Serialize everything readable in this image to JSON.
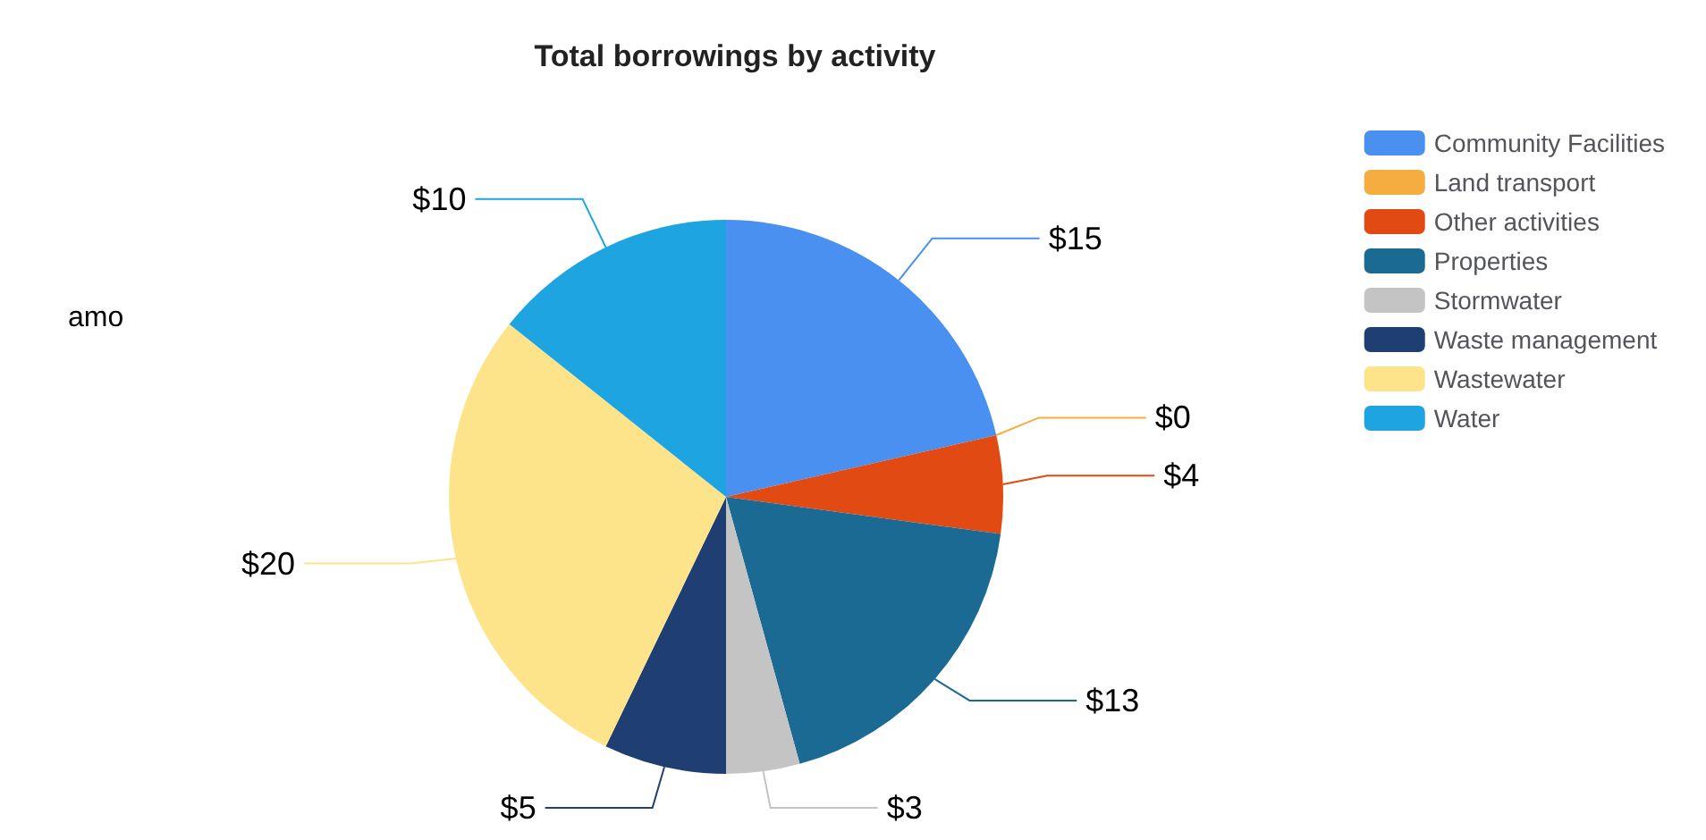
{
  "chart_data": {
    "type": "pie",
    "title": "Total borrowings by activity",
    "categories": [
      "Community Facilities",
      "Land transport",
      "Other activities",
      "Properties",
      "Stormwater",
      "Waste management",
      "Wastewater",
      "Water"
    ],
    "values": [
      15,
      0,
      4,
      13,
      3,
      5,
      20,
      10
    ],
    "value_labels": [
      "$15",
      "$0",
      "$4",
      "$13",
      "$3",
      "$5",
      "$20",
      "$10"
    ],
    "colors": [
      "#4a90f0",
      "#f5ad3f",
      "#e24a14",
      "#1a6a94",
      "#c4c4c4",
      "#1f3f72",
      "#fde48a",
      "#1ea4e0"
    ],
    "legend": "top right",
    "annotations": [
      "amo"
    ]
  }
}
